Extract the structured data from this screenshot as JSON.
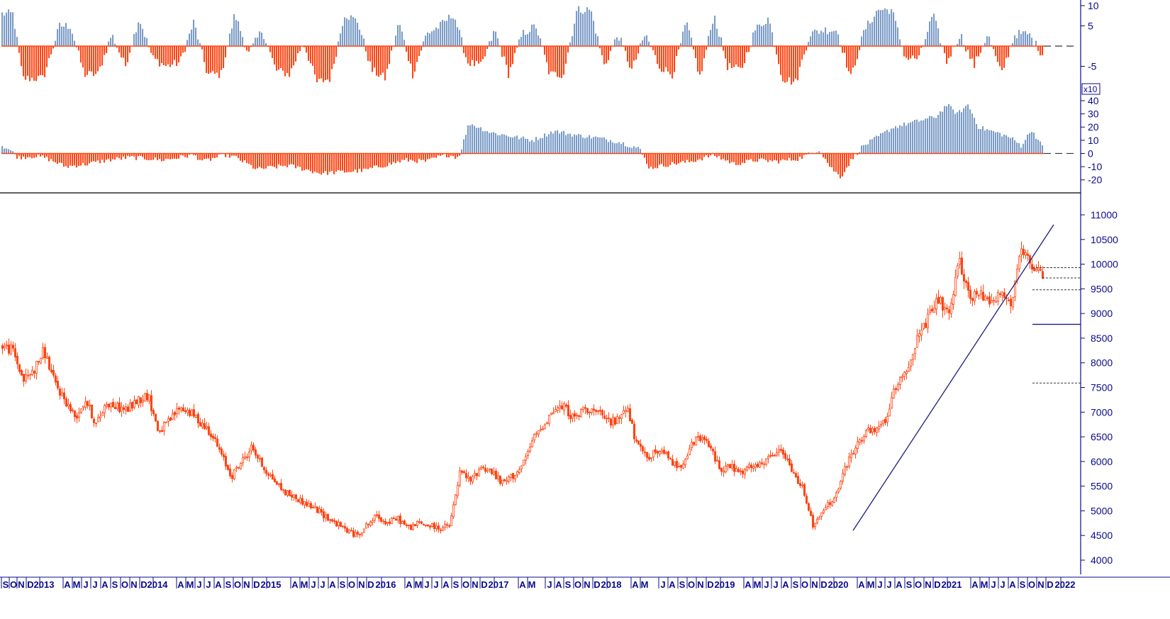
{
  "colors": {
    "up": "#7b9cc6",
    "down": "#ff4514",
    "candle": "#ff4514",
    "trend": "#1c1c80",
    "axis": "#0a0a8c",
    "divider": "#000000",
    "ref": "#333333"
  },
  "chart_data": [
    {
      "type": "bar",
      "panel": "oscillator-top",
      "ylim": [
        -10,
        10
      ],
      "yticks": [
        {
          "v": 10,
          "label": "10"
        },
        {
          "v": 5,
          "label": "5"
        },
        {
          "v": -5,
          "label": "-5"
        }
      ],
      "anchors": [
        [
          0,
          8
        ],
        [
          0.8,
          8
        ],
        [
          1.5,
          -8
        ],
        [
          3,
          -8
        ],
        [
          4.2,
          5
        ],
        [
          5,
          5
        ],
        [
          6,
          -7
        ],
        [
          7,
          -7
        ],
        [
          8,
          3
        ],
        [
          9,
          -5
        ],
        [
          10,
          7
        ],
        [
          11,
          -3
        ],
        [
          12,
          -5
        ],
        [
          13,
          -4
        ],
        [
          14,
          6
        ],
        [
          15,
          -7
        ],
        [
          16,
          -7
        ],
        [
          17,
          8
        ],
        [
          18,
          -2
        ],
        [
          19,
          4
        ],
        [
          20,
          -6
        ],
        [
          21,
          -7
        ],
        [
          22,
          1
        ],
        [
          23,
          -9
        ],
        [
          24,
          -8
        ],
        [
          25,
          8
        ],
        [
          26,
          6
        ],
        [
          27,
          -6
        ],
        [
          28,
          -8
        ],
        [
          29,
          6
        ],
        [
          30,
          -7
        ],
        [
          31,
          3
        ],
        [
          32,
          5
        ],
        [
          33,
          8
        ],
        [
          34,
          -4
        ],
        [
          35,
          -5
        ],
        [
          36,
          4
        ],
        [
          37,
          -7
        ],
        [
          38,
          3
        ],
        [
          39,
          5
        ],
        [
          40,
          -7
        ],
        [
          41,
          -7
        ],
        [
          42,
          9
        ],
        [
          43,
          9
        ],
        [
          44,
          -5
        ],
        [
          45,
          3
        ],
        [
          46,
          -6
        ],
        [
          47,
          3
        ],
        [
          48,
          -5
        ],
        [
          49,
          -7
        ],
        [
          50,
          6
        ],
        [
          51,
          -8
        ],
        [
          52,
          8
        ],
        [
          53,
          -5
        ],
        [
          54,
          -6
        ],
        [
          55,
          4
        ],
        [
          56,
          7
        ],
        [
          57,
          -8
        ],
        [
          58,
          -9
        ],
        [
          59,
          3
        ],
        [
          60,
          4
        ],
        [
          61,
          4
        ],
        [
          62,
          -8
        ],
        [
          63,
          4
        ],
        [
          64,
          9
        ],
        [
          65,
          9
        ],
        [
          66,
          -3
        ],
        [
          67,
          -3
        ],
        [
          68,
          8
        ],
        [
          69,
          -4
        ],
        [
          70,
          3
        ],
        [
          71,
          -5
        ],
        [
          72,
          3
        ],
        [
          73,
          -7
        ],
        [
          74,
          3
        ],
        [
          75,
          3
        ],
        [
          76,
          -2
        ]
      ]
    },
    {
      "type": "bar",
      "panel": "oscillator-middle",
      "ylim": [
        -25,
        40
      ],
      "multiplier_label": "x10",
      "yticks": [
        {
          "v": 40,
          "label": "40"
        },
        {
          "v": 30,
          "label": "30"
        },
        {
          "v": 20,
          "label": "20"
        },
        {
          "v": 10,
          "label": "10"
        },
        {
          "v": 0,
          "label": "0"
        },
        {
          "v": -10,
          "label": "-10"
        },
        {
          "v": -20,
          "label": "-20"
        }
      ],
      "anchors": [
        [
          0,
          6
        ],
        [
          0.7,
          3
        ],
        [
          1.5,
          -3
        ],
        [
          3,
          -2
        ],
        [
          4,
          -3
        ],
        [
          6,
          -10
        ],
        [
          8,
          -8
        ],
        [
          10,
          -5
        ],
        [
          12,
          -3
        ],
        [
          14,
          -4
        ],
        [
          15,
          -5
        ],
        [
          16,
          -4
        ],
        [
          18,
          -1
        ],
        [
          19,
          -6
        ],
        [
          21,
          -1
        ],
        [
          22,
          -3
        ],
        [
          24,
          -12
        ],
        [
          27,
          -9
        ],
        [
          30,
          -15
        ],
        [
          34,
          -13
        ],
        [
          36,
          -9
        ],
        [
          38,
          -5
        ],
        [
          40,
          -6
        ],
        [
          41,
          -3
        ],
        [
          42,
          -1
        ],
        [
          43,
          -3
        ],
        [
          44,
          23
        ],
        [
          46,
          16
        ],
        [
          48,
          13
        ],
        [
          50,
          10
        ],
        [
          52,
          17
        ],
        [
          54,
          14
        ],
        [
          56,
          12
        ],
        [
          58,
          9
        ],
        [
          60,
          4
        ],
        [
          61,
          -11
        ],
        [
          63,
          -8
        ],
        [
          65,
          -6
        ],
        [
          67,
          -1
        ],
        [
          69,
          -8
        ],
        [
          71,
          -5
        ],
        [
          73,
          -6
        ],
        [
          75,
          -4
        ],
        [
          77,
          3
        ],
        [
          78,
          -10
        ],
        [
          79,
          -18
        ],
        [
          80,
          -5
        ],
        [
          81,
          5
        ],
        [
          83,
          15
        ],
        [
          84,
          20
        ],
        [
          86,
          24
        ],
        [
          88,
          28
        ],
        [
          89,
          37
        ],
        [
          90,
          30
        ],
        [
          91,
          37
        ],
        [
          92,
          20
        ],
        [
          94,
          15
        ],
        [
          95,
          12
        ],
        [
          96,
          6
        ],
        [
          97,
          18
        ],
        [
          98,
          5
        ]
      ]
    },
    {
      "type": "candlestick",
      "panel": "price",
      "ylim": [
        3900,
        11300
      ],
      "yticks": [
        {
          "v": 11000,
          "label": "11000"
        },
        {
          "v": 10500,
          "label": "10500"
        },
        {
          "v": 10000,
          "label": "10000"
        },
        {
          "v": 9500,
          "label": "9500"
        },
        {
          "v": 9000,
          "label": "9000"
        },
        {
          "v": 8500,
          "label": "8500"
        },
        {
          "v": 8000,
          "label": "8000"
        },
        {
          "v": 7500,
          "label": "7500"
        },
        {
          "v": 7000,
          "label": "7000"
        },
        {
          "v": 6500,
          "label": "6500"
        },
        {
          "v": 6000,
          "label": "6000"
        },
        {
          "v": 5500,
          "label": "5500"
        },
        {
          "v": 5000,
          "label": "5000"
        },
        {
          "v": 4500,
          "label": "4500"
        },
        {
          "v": 4000,
          "label": "4000"
        }
      ],
      "anchors": [
        [
          0,
          8350
        ],
        [
          1,
          8250
        ],
        [
          2,
          7650
        ],
        [
          3,
          7850
        ],
        [
          4,
          8250
        ],
        [
          5,
          7600
        ],
        [
          6,
          7250
        ],
        [
          7,
          6900
        ],
        [
          8,
          7250
        ],
        [
          9,
          6750
        ],
        [
          10,
          7200
        ],
        [
          11,
          7100
        ],
        [
          12,
          7050
        ],
        [
          13,
          7250
        ],
        [
          14,
          7350
        ],
        [
          15,
          6600
        ],
        [
          16,
          6800
        ],
        [
          17,
          7100
        ],
        [
          18,
          7000
        ],
        [
          19,
          6800
        ],
        [
          20,
          6600
        ],
        [
          22,
          5700
        ],
        [
          24,
          6300
        ],
        [
          25,
          5900
        ],
        [
          27,
          5400
        ],
        [
          30,
          5050
        ],
        [
          32,
          4750
        ],
        [
          34,
          4500
        ],
        [
          36,
          4900
        ],
        [
          37,
          4750
        ],
        [
          38,
          4850
        ],
        [
          39,
          4650
        ],
        [
          40,
          4750
        ],
        [
          41,
          4700
        ],
        [
          42,
          4650
        ],
        [
          43,
          4700
        ],
        [
          44,
          5800
        ],
        [
          45,
          5600
        ],
        [
          46,
          5900
        ],
        [
          47,
          5800
        ],
        [
          48,
          5550
        ],
        [
          49,
          5700
        ],
        [
          50,
          5900
        ],
        [
          51,
          6450
        ],
        [
          52,
          6750
        ],
        [
          53,
          7050
        ],
        [
          54,
          7100
        ],
        [
          55,
          6850
        ],
        [
          56,
          7100
        ],
        [
          57,
          7000
        ],
        [
          58,
          6850
        ],
        [
          59,
          6800
        ],
        [
          60,
          7150
        ],
        [
          61,
          6300
        ],
        [
          62,
          6100
        ],
        [
          63,
          6200
        ],
        [
          64,
          6100
        ],
        [
          65,
          5850
        ],
        [
          66,
          6250
        ],
        [
          67,
          6500
        ],
        [
          68,
          6300
        ],
        [
          69,
          5850
        ],
        [
          70,
          5900
        ],
        [
          71,
          5750
        ],
        [
          72,
          5900
        ],
        [
          73,
          5900
        ],
        [
          74,
          6150
        ],
        [
          75,
          6200
        ],
        [
          76,
          5750
        ],
        [
          77,
          5450
        ],
        [
          78,
          4650
        ],
        [
          79,
          5050
        ],
        [
          80,
          5250
        ],
        [
          81,
          5850
        ],
        [
          82,
          6300
        ],
        [
          83,
          6600
        ],
        [
          84,
          6600
        ],
        [
          85,
          6900
        ],
        [
          86,
          7600
        ],
        [
          87,
          7900
        ],
        [
          88,
          8500
        ],
        [
          89,
          8900
        ],
        [
          90,
          9300
        ],
        [
          91,
          8900
        ],
        [
          92,
          10100
        ],
        [
          93,
          9300
        ],
        [
          94,
          9400
        ],
        [
          95,
          9300
        ],
        [
          96,
          9400
        ],
        [
          97,
          9200
        ],
        [
          98,
          10300
        ],
        [
          99,
          9850
        ],
        [
          100,
          9800
        ]
      ]
    }
  ],
  "price_extras": {
    "trendline": {
      "from": {
        "week": 1252,
        "price": 4600
      },
      "to": {
        "week": 1486,
        "price": 10800
      }
    },
    "levels": [
      {
        "price": 9930,
        "style": "dotted",
        "from_week": 1455
      },
      {
        "price": 9720,
        "style": "dotted",
        "from_week": 1470
      },
      {
        "price": 9480,
        "style": "dotted",
        "from_week": 1455
      },
      {
        "price": 8780,
        "style": "solid",
        "from_week": 1455
      },
      {
        "price": 7590,
        "style": "dotted",
        "from_week": 1455
      }
    ]
  },
  "x_axis": {
    "ticks": [
      {
        "x": 8,
        "label": "S"
      },
      {
        "x": 19,
        "label": "O"
      },
      {
        "x": 30,
        "label": "N"
      },
      {
        "x": 43,
        "label": "D"
      },
      {
        "x": 62,
        "label": "2013"
      },
      {
        "x": 95,
        "label": "A"
      },
      {
        "x": 108,
        "label": "M"
      },
      {
        "x": 121,
        "label": "J"
      },
      {
        "x": 134,
        "label": "J"
      },
      {
        "x": 148,
        "label": "A"
      },
      {
        "x": 162,
        "label": "S"
      },
      {
        "x": 176,
        "label": "O"
      },
      {
        "x": 189,
        "label": "N"
      },
      {
        "x": 203,
        "label": "D"
      },
      {
        "x": 222,
        "label": "2014"
      },
      {
        "x": 255,
        "label": "A"
      },
      {
        "x": 268,
        "label": "M"
      },
      {
        "x": 281,
        "label": "J"
      },
      {
        "x": 294,
        "label": "J"
      },
      {
        "x": 308,
        "label": "A"
      },
      {
        "x": 322,
        "label": "S"
      },
      {
        "x": 335,
        "label": "O"
      },
      {
        "x": 348,
        "label": "N"
      },
      {
        "x": 362,
        "label": "D"
      },
      {
        "x": 382,
        "label": "2015"
      },
      {
        "x": 416,
        "label": "A"
      },
      {
        "x": 429,
        "label": "M"
      },
      {
        "x": 442,
        "label": "J"
      },
      {
        "x": 455,
        "label": "J"
      },
      {
        "x": 469,
        "label": "A"
      },
      {
        "x": 483,
        "label": "S"
      },
      {
        "x": 496,
        "label": "O"
      },
      {
        "x": 510,
        "label": "N"
      },
      {
        "x": 523,
        "label": "D"
      },
      {
        "x": 544,
        "label": "2016"
      },
      {
        "x": 577,
        "label": "A"
      },
      {
        "x": 590,
        "label": "M"
      },
      {
        "x": 602,
        "label": "J"
      },
      {
        "x": 615,
        "label": "J"
      },
      {
        "x": 629,
        "label": "A"
      },
      {
        "x": 643,
        "label": "S"
      },
      {
        "x": 657,
        "label": "O"
      },
      {
        "x": 670,
        "label": "N"
      },
      {
        "x": 683,
        "label": "D"
      },
      {
        "x": 703,
        "label": "2017"
      },
      {
        "x": 737,
        "label": "A"
      },
      {
        "x": 750,
        "label": "M"
      },
      {
        "x": 775,
        "label": "J"
      },
      {
        "x": 788,
        "label": "A"
      },
      {
        "x": 801,
        "label": "S"
      },
      {
        "x": 815,
        "label": "O"
      },
      {
        "x": 828,
        "label": "N"
      },
      {
        "x": 842,
        "label": "D"
      },
      {
        "x": 862,
        "label": "2018"
      },
      {
        "x": 896,
        "label": "A"
      },
      {
        "x": 909,
        "label": "M"
      },
      {
        "x": 935,
        "label": "J"
      },
      {
        "x": 948,
        "label": "A"
      },
      {
        "x": 962,
        "label": "S"
      },
      {
        "x": 975,
        "label": "O"
      },
      {
        "x": 988,
        "label": "N"
      },
      {
        "x": 1002,
        "label": "D"
      },
      {
        "x": 1022,
        "label": "2019"
      },
      {
        "x": 1055,
        "label": "A"
      },
      {
        "x": 1068,
        "label": "M"
      },
      {
        "x": 1081,
        "label": "J"
      },
      {
        "x": 1094,
        "label": "J"
      },
      {
        "x": 1108,
        "label": "A"
      },
      {
        "x": 1122,
        "label": "S"
      },
      {
        "x": 1135,
        "label": "O"
      },
      {
        "x": 1149,
        "label": "N"
      },
      {
        "x": 1162,
        "label": "D"
      },
      {
        "x": 1182,
        "label": "2020"
      },
      {
        "x": 1215,
        "label": "A"
      },
      {
        "x": 1228,
        "label": "M"
      },
      {
        "x": 1241,
        "label": "J"
      },
      {
        "x": 1254,
        "label": "J"
      },
      {
        "x": 1268,
        "label": "A"
      },
      {
        "x": 1282,
        "label": "S"
      },
      {
        "x": 1295,
        "label": "O"
      },
      {
        "x": 1309,
        "label": "N"
      },
      {
        "x": 1322,
        "label": "D"
      },
      {
        "x": 1342,
        "label": "2021"
      },
      {
        "x": 1375,
        "label": "A"
      },
      {
        "x": 1388,
        "label": "M"
      },
      {
        "x": 1401,
        "label": "J"
      },
      {
        "x": 1414,
        "label": "J"
      },
      {
        "x": 1428,
        "label": "A"
      },
      {
        "x": 1442,
        "label": "S"
      },
      {
        "x": 1455,
        "label": "O"
      },
      {
        "x": 1468,
        "label": "N"
      },
      {
        "x": 1481,
        "label": "D"
      },
      {
        "x": 1502,
        "label": "2022"
      }
    ]
  }
}
